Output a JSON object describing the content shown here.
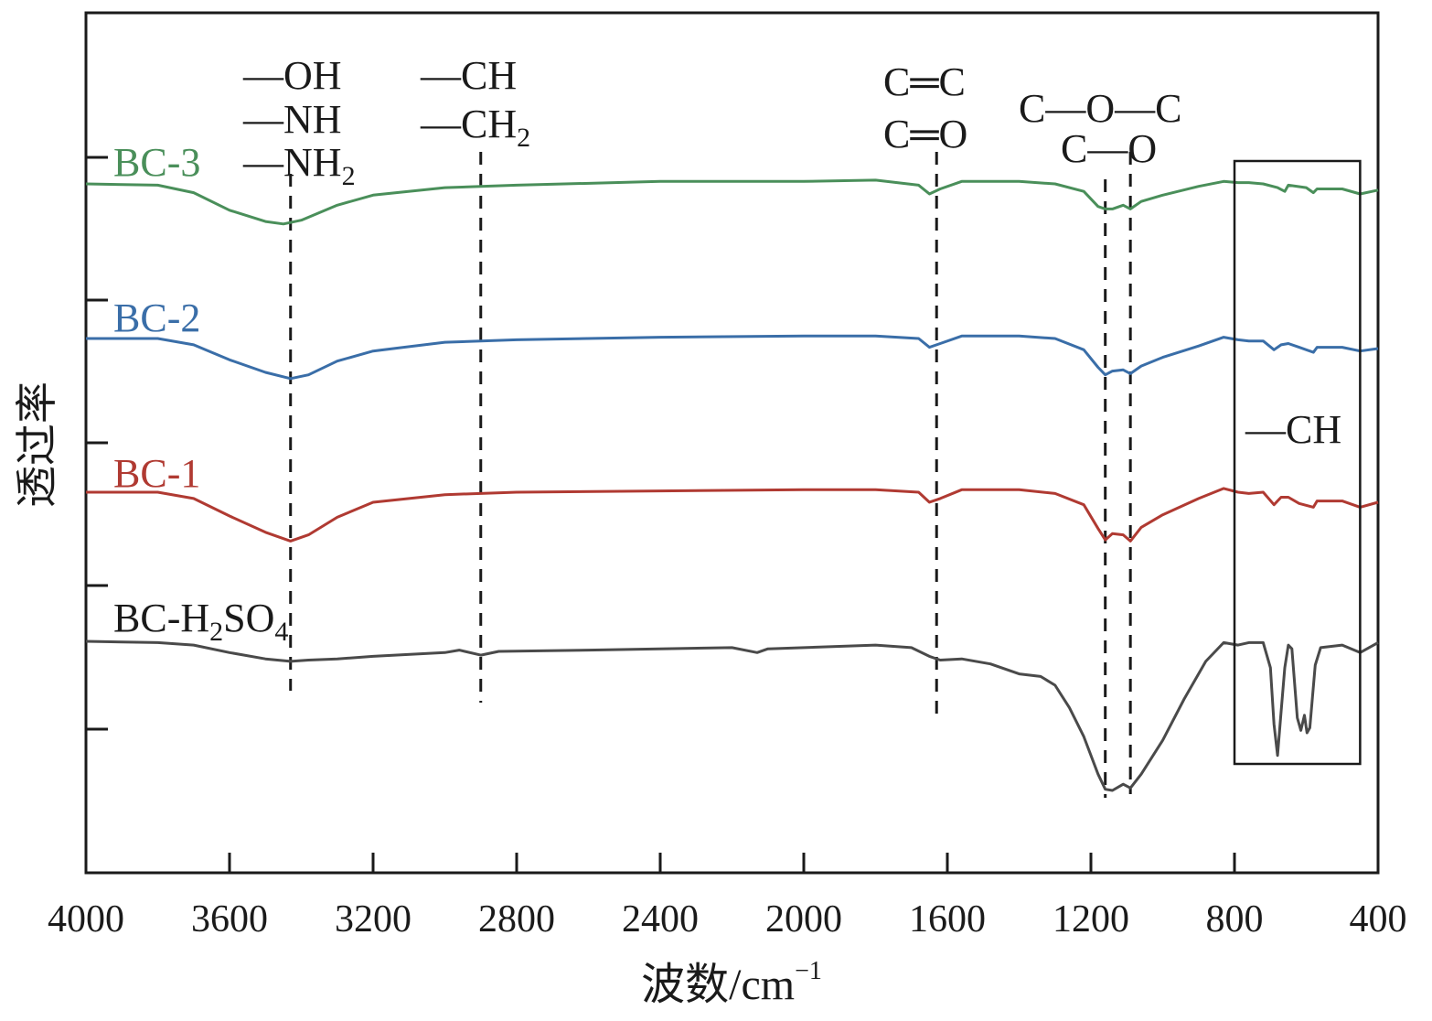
{
  "chart_data": {
    "type": "line",
    "xlabel": "波数/cm",
    "xlabel_sup": "−1",
    "ylabel": "透过率",
    "xlim": [
      4000,
      400
    ],
    "x_reversed": true,
    "x_ticks": [
      4000,
      3600,
      3200,
      2800,
      2400,
      2000,
      1600,
      1200,
      800,
      400
    ],
    "x_tick_labels": [
      "4000",
      "3600",
      "3200",
      "2800",
      "2400",
      "2000",
      "1600",
      "1200",
      "800",
      "400"
    ],
    "y_ticks_unlabeled": 5,
    "grid": false,
    "series": [
      {
        "name": "BC-3",
        "color": "#4a8f5a",
        "points": [
          [
            4000,
            3.04
          ],
          [
            3800,
            3.03
          ],
          [
            3700,
            2.97
          ],
          [
            3600,
            2.83
          ],
          [
            3500,
            2.74
          ],
          [
            3450,
            2.72
          ],
          [
            3400,
            2.75
          ],
          [
            3300,
            2.87
          ],
          [
            3200,
            2.95
          ],
          [
            3000,
            3.01
          ],
          [
            2800,
            3.03
          ],
          [
            2400,
            3.06
          ],
          [
            2000,
            3.06
          ],
          [
            1800,
            3.07
          ],
          [
            1680,
            3.03
          ],
          [
            1650,
            2.96
          ],
          [
            1620,
            3.0
          ],
          [
            1560,
            3.06
          ],
          [
            1400,
            3.06
          ],
          [
            1300,
            3.04
          ],
          [
            1220,
            2.98
          ],
          [
            1180,
            2.86
          ],
          [
            1160,
            2.84
          ],
          [
            1140,
            2.84
          ],
          [
            1110,
            2.87
          ],
          [
            1090,
            2.84
          ],
          [
            1060,
            2.9
          ],
          [
            1000,
            2.95
          ],
          [
            900,
            3.02
          ],
          [
            830,
            3.06
          ],
          [
            790,
            3.05
          ],
          [
            760,
            3.05
          ],
          [
            720,
            3.04
          ],
          [
            680,
            3.01
          ],
          [
            660,
            2.98
          ],
          [
            650,
            3.03
          ],
          [
            600,
            3.01
          ],
          [
            580,
            2.97
          ],
          [
            570,
            3.0
          ],
          [
            500,
            3.0
          ],
          [
            450,
            2.96
          ],
          [
            400,
            2.99
          ]
        ]
      },
      {
        "name": "BC-2",
        "color": "#3a6ea8",
        "points": [
          [
            4000,
            1.95
          ],
          [
            3800,
            1.95
          ],
          [
            3700,
            1.9
          ],
          [
            3600,
            1.78
          ],
          [
            3500,
            1.68
          ],
          [
            3430,
            1.63
          ],
          [
            3380,
            1.66
          ],
          [
            3300,
            1.77
          ],
          [
            3200,
            1.85
          ],
          [
            3000,
            1.92
          ],
          [
            2800,
            1.94
          ],
          [
            2400,
            1.96
          ],
          [
            2000,
            1.97
          ],
          [
            1800,
            1.97
          ],
          [
            1680,
            1.95
          ],
          [
            1650,
            1.88
          ],
          [
            1620,
            1.91
          ],
          [
            1560,
            1.97
          ],
          [
            1400,
            1.97
          ],
          [
            1300,
            1.95
          ],
          [
            1220,
            1.86
          ],
          [
            1180,
            1.72
          ],
          [
            1160,
            1.66
          ],
          [
            1140,
            1.69
          ],
          [
            1110,
            1.7
          ],
          [
            1090,
            1.67
          ],
          [
            1060,
            1.73
          ],
          [
            1000,
            1.8
          ],
          [
            900,
            1.89
          ],
          [
            830,
            1.96
          ],
          [
            790,
            1.94
          ],
          [
            760,
            1.93
          ],
          [
            720,
            1.93
          ],
          [
            690,
            1.86
          ],
          [
            670,
            1.9
          ],
          [
            650,
            1.91
          ],
          [
            620,
            1.88
          ],
          [
            580,
            1.84
          ],
          [
            570,
            1.88
          ],
          [
            500,
            1.88
          ],
          [
            450,
            1.85
          ],
          [
            400,
            1.87
          ]
        ]
      },
      {
        "name": "BC-1",
        "color": "#b03a32",
        "points": [
          [
            4000,
            0.86
          ],
          [
            3800,
            0.86
          ],
          [
            3700,
            0.81
          ],
          [
            3600,
            0.67
          ],
          [
            3500,
            0.54
          ],
          [
            3430,
            0.47
          ],
          [
            3380,
            0.52
          ],
          [
            3300,
            0.66
          ],
          [
            3200,
            0.78
          ],
          [
            3000,
            0.84
          ],
          [
            2800,
            0.86
          ],
          [
            2400,
            0.87
          ],
          [
            2000,
            0.88
          ],
          [
            1800,
            0.88
          ],
          [
            1680,
            0.86
          ],
          [
            1650,
            0.78
          ],
          [
            1620,
            0.81
          ],
          [
            1560,
            0.88
          ],
          [
            1400,
            0.88
          ],
          [
            1300,
            0.85
          ],
          [
            1220,
            0.76
          ],
          [
            1180,
            0.57
          ],
          [
            1160,
            0.48
          ],
          [
            1140,
            0.53
          ],
          [
            1110,
            0.52
          ],
          [
            1090,
            0.47
          ],
          [
            1060,
            0.58
          ],
          [
            1000,
            0.68
          ],
          [
            900,
            0.81
          ],
          [
            830,
            0.89
          ],
          [
            790,
            0.86
          ],
          [
            760,
            0.85
          ],
          [
            720,
            0.86
          ],
          [
            690,
            0.76
          ],
          [
            670,
            0.82
          ],
          [
            650,
            0.82
          ],
          [
            620,
            0.77
          ],
          [
            580,
            0.74
          ],
          [
            570,
            0.79
          ],
          [
            500,
            0.79
          ],
          [
            450,
            0.74
          ],
          [
            400,
            0.78
          ]
        ]
      },
      {
        "name": "BC-H2SO4",
        "name_display": "BC-H",
        "color": "#4a4a4a",
        "points": [
          [
            4000,
            -0.19
          ],
          [
            3800,
            -0.2
          ],
          [
            3700,
            -0.22
          ],
          [
            3600,
            -0.28
          ],
          [
            3500,
            -0.33
          ],
          [
            3430,
            -0.35
          ],
          [
            3380,
            -0.34
          ],
          [
            3300,
            -0.33
          ],
          [
            3200,
            -0.31
          ],
          [
            3000,
            -0.28
          ],
          [
            2960,
            -0.26
          ],
          [
            2900,
            -0.3
          ],
          [
            2850,
            -0.27
          ],
          [
            2600,
            -0.26
          ],
          [
            2200,
            -0.24
          ],
          [
            2130,
            -0.28
          ],
          [
            2100,
            -0.25
          ],
          [
            1800,
            -0.22
          ],
          [
            1700,
            -0.24
          ],
          [
            1650,
            -0.31
          ],
          [
            1620,
            -0.34
          ],
          [
            1560,
            -0.33
          ],
          [
            1480,
            -0.37
          ],
          [
            1400,
            -0.45
          ],
          [
            1340,
            -0.47
          ],
          [
            1300,
            -0.54
          ],
          [
            1260,
            -0.72
          ],
          [
            1220,
            -0.95
          ],
          [
            1180,
            -1.25
          ],
          [
            1160,
            -1.37
          ],
          [
            1140,
            -1.38
          ],
          [
            1110,
            -1.33
          ],
          [
            1090,
            -1.36
          ],
          [
            1060,
            -1.25
          ],
          [
            1000,
            -0.98
          ],
          [
            940,
            -0.65
          ],
          [
            880,
            -0.35
          ],
          [
            830,
            -0.2
          ],
          [
            790,
            -0.22
          ],
          [
            760,
            -0.2
          ],
          [
            720,
            -0.2
          ],
          [
            700,
            -0.4
          ],
          [
            690,
            -0.85
          ],
          [
            680,
            -1.1
          ],
          [
            670,
            -0.75
          ],
          [
            660,
            -0.4
          ],
          [
            650,
            -0.22
          ],
          [
            640,
            -0.25
          ],
          [
            625,
            -0.8
          ],
          [
            615,
            -0.9
          ],
          [
            605,
            -0.78
          ],
          [
            598,
            -0.92
          ],
          [
            590,
            -0.88
          ],
          [
            575,
            -0.38
          ],
          [
            560,
            -0.24
          ],
          [
            500,
            -0.22
          ],
          [
            450,
            -0.28
          ],
          [
            400,
            -0.2
          ]
        ]
      }
    ],
    "series_labels": {
      "BC-3": "BC-3",
      "BC-2": "BC-2",
      "BC-1": "BC-1",
      "BC-H2SO4_main": "BC-H",
      "BC-H2SO4_sub2": "2",
      "BC-H2SO4_mid": "SO",
      "BC-H2SO4_sub4": "4"
    },
    "reference_lines_x": [
      3430,
      2900,
      1630,
      1160,
      1090
    ],
    "annotations": {
      "oh": "—OH",
      "nh": "—NH",
      "nh2_main": "—NH",
      "nh2_sub": "2",
      "ch": "—CH",
      "ch2_main": "—CH",
      "ch2_sub": "2",
      "cc_double": "C═C",
      "co_double": "C═O",
      "coc": "C—O—C",
      "co": "C—O",
      "box_ch": "—CH"
    },
    "box_region_x": [
      800,
      450
    ]
  }
}
